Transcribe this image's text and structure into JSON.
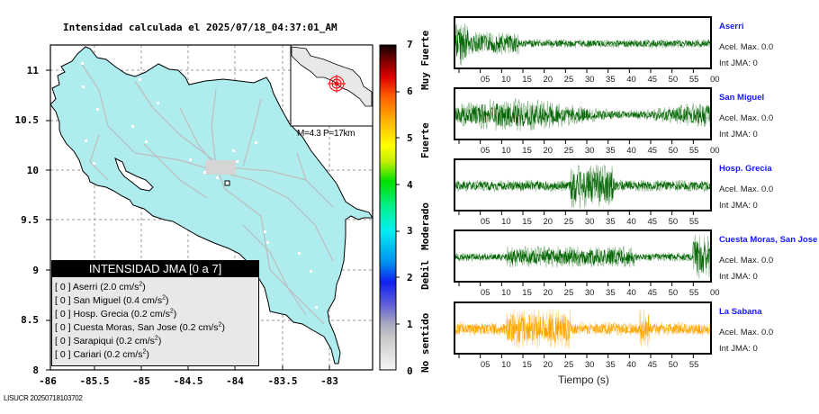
{
  "title": "Intensidad calculada el 2025/07/18_04:37:01_AM",
  "map": {
    "y_ticks": [
      "11",
      "10.5",
      "10",
      "9.5",
      "9",
      "8.5",
      "8"
    ],
    "x_ticks": [
      "-86",
      "-85.5",
      "-85",
      "-84.5",
      "-84",
      "-83.5",
      "-83"
    ],
    "land_color": "#aeeced",
    "road_color": "#bdbdbd",
    "inset": {
      "label": "M=4.3 P=17km",
      "epicenter_color": "#ff0000"
    }
  },
  "legend": {
    "title": "INTENSIDAD JMA [0 a 7]",
    "items": [
      {
        "int": "[ 0 ]",
        "name": "Aserri",
        "accel": "(2.0 cm/s",
        "sup": "2",
        "close": ")"
      },
      {
        "int": "[ 0 ]",
        "name": "San Miguel",
        "accel": "(0.4 cm/s",
        "sup": "2",
        "close": ")"
      },
      {
        "int": "[ 0 ]",
        "name": "Hosp. Grecia",
        "accel": "(0.2 cm/s",
        "sup": "2",
        "close": ")"
      },
      {
        "int": "[ 0 ]",
        "name": "Cuesta Moras, San Jose",
        "accel": "(0.2 cm/s",
        "sup": "2",
        "close": ")"
      },
      {
        "int": "[ 0 ]",
        "name": "Sarapiqui",
        "accel": "(0.2 cm/s",
        "sup": "2",
        "close": ")"
      },
      {
        "int": "[ 0 ]",
        "name": "Cariari",
        "accel": "(0.2 cm/s",
        "sup": "2",
        "close": ")"
      }
    ]
  },
  "colorbar": {
    "ticks": [
      "7",
      "6",
      "5",
      "4",
      "3",
      "2",
      "1",
      "0"
    ],
    "labels": [
      "Muy Fuerte",
      "Fuerte",
      "Moderado",
      "Debil",
      "No sentido"
    ]
  },
  "footer": "LISUCR 20250718103702",
  "waveforms": {
    "xlabel": "Tiempo (s)",
    "stations": [
      {
        "name": "Aserri",
        "acel": "Acel. Max. 0.0",
        "int": "Int JMA: 0",
        "color": "#006400",
        "ticks": [
          "05",
          "10",
          "15",
          "20",
          "25",
          "30",
          "35",
          "40",
          "45",
          "50",
          "55",
          "00"
        ]
      },
      {
        "name": "San Miguel",
        "acel": "Acel. Max. 0.0",
        "int": "Int JMA: 0",
        "color": "#006400",
        "ticks": [
          "05",
          "10",
          "15",
          "20",
          "25",
          "30",
          "35",
          "40",
          "45",
          "50",
          "55",
          "00"
        ]
      },
      {
        "name": "Hosp. Grecia",
        "acel": "Acel. Max. 0.0",
        "int": "Int JMA: 0",
        "color": "#006400",
        "ticks": [
          "05",
          "10",
          "15",
          "20",
          "25",
          "30",
          "35",
          "40",
          "45",
          "50",
          "55"
        ]
      },
      {
        "name": "Cuesta Moras, San Jose",
        "acel": "Acel. Max. 0.0",
        "int": "Int JMA: 0",
        "color": "#006400",
        "ticks": [
          "05",
          "10",
          "15",
          "20",
          "25",
          "30",
          "35",
          "40",
          "45",
          "50",
          "55",
          "00"
        ]
      },
      {
        "name": "La Sabana",
        "acel": "Acel. Max. 0.0",
        "int": "Int JMA: 0",
        "color": "#ffa500",
        "ticks": [
          "05",
          "10",
          "15",
          "20",
          "25",
          "30",
          "35",
          "40",
          "45",
          "50",
          "55"
        ]
      }
    ]
  }
}
